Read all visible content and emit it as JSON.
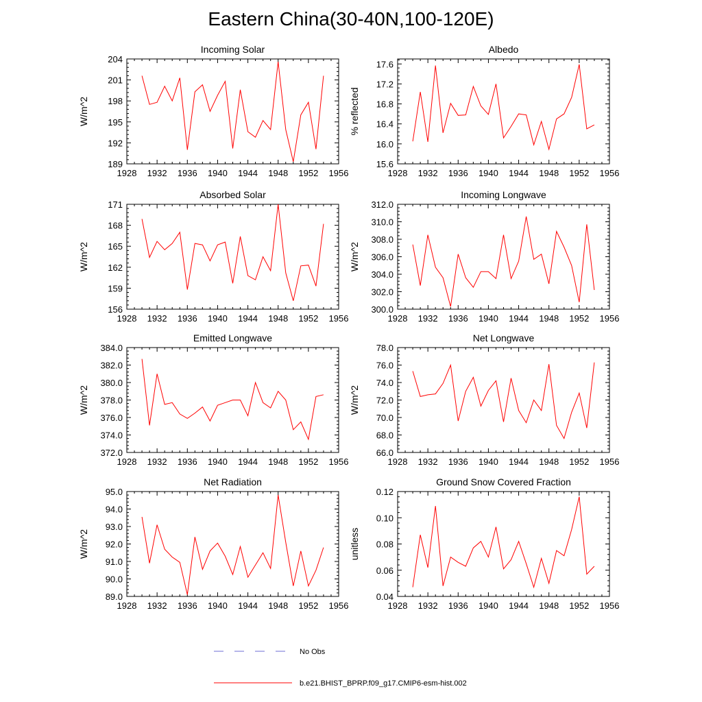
{
  "figure_title": "Eastern China(30-40N,100-120E)",
  "colors": {
    "model_line": "#ff0000",
    "obs_line": "#6b6bd6",
    "axis": "#000000"
  },
  "legend": {
    "obs_label": "No Obs",
    "model_label": "b.e21.BHIST_BPRP.f09_g17.CMIP6-esm-hist.002"
  },
  "chart_data": [
    {
      "type": "line",
      "title": "Incoming Solar",
      "ylabel": "W/m^2",
      "xlim": [
        1928,
        1956
      ],
      "xticks": [
        1928,
        1932,
        1936,
        1940,
        1944,
        1948,
        1952,
        1956
      ],
      "ylim": [
        189,
        204
      ],
      "yticks": [
        "189",
        "192",
        "195",
        "198",
        "201",
        "204"
      ],
      "yticks_values": [
        189,
        192,
        195,
        198,
        201,
        204
      ],
      "x": [
        1930,
        1931,
        1932,
        1933,
        1934,
        1935,
        1936,
        1937,
        1938,
        1939,
        1940,
        1941,
        1942,
        1943,
        1944,
        1945,
        1946,
        1947,
        1948,
        1949,
        1950,
        1951,
        1952,
        1953,
        1954
      ],
      "values": [
        201.6,
        197.5,
        197.8,
        200.1,
        198.0,
        201.3,
        191.0,
        199.3,
        200.3,
        196.5,
        198.8,
        200.8,
        191.2,
        199.6,
        193.6,
        192.8,
        195.2,
        193.9,
        203.6,
        193.9,
        189.3,
        196.0,
        197.8,
        191.1,
        201.6
      ]
    },
    {
      "type": "line",
      "title": "Albedo",
      "ylabel": "% reflected",
      "xlim": [
        1928,
        1956
      ],
      "xticks": [
        1928,
        1932,
        1936,
        1940,
        1944,
        1948,
        1952,
        1956
      ],
      "ylim": [
        15.6,
        17.7
      ],
      "yticks": [
        "15.6",
        "16.0",
        "16.4",
        "16.8",
        "17.2",
        "17.6"
      ],
      "yticks_values": [
        15.6,
        16.0,
        16.4,
        16.8,
        17.2,
        17.6
      ],
      "x": [
        1930,
        1931,
        1932,
        1933,
        1934,
        1935,
        1936,
        1937,
        1938,
        1939,
        1940,
        1941,
        1942,
        1943,
        1944,
        1945,
        1946,
        1947,
        1948,
        1949,
        1950,
        1951,
        1952,
        1953,
        1954
      ],
      "values": [
        16.05,
        17.04,
        16.04,
        17.57,
        16.22,
        16.81,
        16.57,
        16.58,
        17.15,
        16.76,
        16.59,
        17.2,
        16.12,
        16.35,
        16.6,
        16.58,
        15.98,
        16.45,
        15.89,
        16.5,
        16.6,
        16.93,
        17.59,
        16.3,
        16.38
      ]
    },
    {
      "type": "line",
      "title": "Absorbed Solar",
      "ylabel": "W/m^2",
      "xlim": [
        1928,
        1956
      ],
      "xticks": [
        1928,
        1932,
        1936,
        1940,
        1944,
        1948,
        1952,
        1956
      ],
      "ylim": [
        156,
        171
      ],
      "yticks": [
        "156",
        "159",
        "162",
        "165",
        "168",
        "171"
      ],
      "yticks_values": [
        156,
        159,
        162,
        165,
        168,
        171
      ],
      "x": [
        1930,
        1931,
        1932,
        1933,
        1934,
        1935,
        1936,
        1937,
        1938,
        1939,
        1940,
        1941,
        1942,
        1943,
        1944,
        1945,
        1946,
        1947,
        1948,
        1949,
        1950,
        1951,
        1952,
        1953,
        1954
      ],
      "values": [
        168.9,
        163.4,
        165.7,
        164.5,
        165.4,
        167.0,
        158.8,
        165.4,
        165.2,
        162.9,
        165.2,
        165.6,
        159.7,
        166.4,
        160.8,
        160.2,
        163.5,
        161.5,
        171.0,
        161.2,
        157.2,
        162.2,
        162.3,
        159.3,
        168.2
      ]
    },
    {
      "type": "line",
      "title": "Incoming Longwave",
      "ylabel": "W/m^2",
      "xlim": [
        1928,
        1956
      ],
      "xticks": [
        1928,
        1932,
        1936,
        1940,
        1944,
        1948,
        1952,
        1956
      ],
      "ylim": [
        300,
        312
      ],
      "yticks": [
        "300.0",
        "302.0",
        "304.0",
        "306.0",
        "308.0",
        "310.0",
        "312.0"
      ],
      "yticks_values": [
        300,
        302,
        304,
        306,
        308,
        310,
        312
      ],
      "x": [
        1930,
        1931,
        1932,
        1933,
        1934,
        1935,
        1936,
        1937,
        1938,
        1939,
        1940,
        1941,
        1942,
        1943,
        1944,
        1945,
        1946,
        1947,
        1948,
        1949,
        1950,
        1951,
        1952,
        1953,
        1954
      ],
      "values": [
        307.4,
        302.7,
        308.5,
        304.8,
        303.6,
        300.3,
        306.3,
        303.6,
        302.5,
        304.3,
        304.3,
        303.5,
        308.5,
        303.5,
        305.5,
        310.6,
        305.7,
        306.3,
        302.9,
        308.9,
        307.1,
        305.0,
        300.8,
        309.7,
        302.2
      ]
    },
    {
      "type": "line",
      "title": "Emitted Longwave",
      "ylabel": "W/m^2",
      "xlim": [
        1928,
        1956
      ],
      "xticks": [
        1928,
        1932,
        1936,
        1940,
        1944,
        1948,
        1952,
        1956
      ],
      "ylim": [
        372,
        384
      ],
      "yticks": [
        "372.0",
        "374.0",
        "376.0",
        "378.0",
        "380.0",
        "382.0",
        "384.0"
      ],
      "yticks_values": [
        372,
        374,
        376,
        378,
        380,
        382,
        384
      ],
      "x": [
        1930,
        1931,
        1932,
        1933,
        1934,
        1935,
        1936,
        1937,
        1938,
        1939,
        1940,
        1941,
        1942,
        1943,
        1944,
        1945,
        1946,
        1947,
        1948,
        1949,
        1950,
        1951,
        1952,
        1953,
        1954
      ],
      "values": [
        382.7,
        375.1,
        381.0,
        377.5,
        377.7,
        376.4,
        375.9,
        376.5,
        377.2,
        375.6,
        377.4,
        377.7,
        378.0,
        378.0,
        376.2,
        380.0,
        377.7,
        377.1,
        379.0,
        378.0,
        374.6,
        375.5,
        373.5,
        378.4,
        378.6
      ]
    },
    {
      "type": "line",
      "title": "Net Longwave",
      "ylabel": "W/m^2",
      "xlim": [
        1928,
        1956
      ],
      "xticks": [
        1928,
        1932,
        1936,
        1940,
        1944,
        1948,
        1952,
        1956
      ],
      "ylim": [
        66,
        78
      ],
      "yticks": [
        "66.0",
        "68.0",
        "70.0",
        "72.0",
        "74.0",
        "76.0",
        "78.0"
      ],
      "yticks_values": [
        66,
        68,
        70,
        72,
        74,
        76,
        78
      ],
      "x": [
        1930,
        1931,
        1932,
        1933,
        1934,
        1935,
        1936,
        1937,
        1938,
        1939,
        1940,
        1941,
        1942,
        1943,
        1944,
        1945,
        1946,
        1947,
        1948,
        1949,
        1950,
        1951,
        1952,
        1953,
        1954
      ],
      "values": [
        75.3,
        72.4,
        72.6,
        72.7,
        73.9,
        76.0,
        69.6,
        73.0,
        74.6,
        71.3,
        73.1,
        74.2,
        69.5,
        74.5,
        70.8,
        69.4,
        72.0,
        70.8,
        76.1,
        69.1,
        67.6,
        70.6,
        72.8,
        68.8,
        76.3
      ]
    },
    {
      "type": "line",
      "title": "Net Radiation",
      "ylabel": "W/m^2",
      "xlim": [
        1928,
        1956
      ],
      "xticks": [
        1928,
        1932,
        1936,
        1940,
        1944,
        1948,
        1952,
        1956
      ],
      "ylim": [
        89,
        95
      ],
      "yticks": [
        "89.0",
        "90.0",
        "91.0",
        "92.0",
        "93.0",
        "94.0",
        "95.0"
      ],
      "yticks_values": [
        89,
        90,
        91,
        92,
        93,
        94,
        95
      ],
      "x": [
        1930,
        1931,
        1932,
        1933,
        1934,
        1935,
        1936,
        1937,
        1938,
        1939,
        1940,
        1941,
        1942,
        1943,
        1944,
        1945,
        1946,
        1947,
        1948,
        1949,
        1950,
        1951,
        1952,
        1953,
        1954
      ],
      "values": [
        93.55,
        90.9,
        93.1,
        91.7,
        91.25,
        90.95,
        89.1,
        92.4,
        90.55,
        91.6,
        92.05,
        91.3,
        90.25,
        91.85,
        90.1,
        90.8,
        91.5,
        90.6,
        94.8,
        92.1,
        89.6,
        91.6,
        89.6,
        90.5,
        91.8
      ]
    },
    {
      "type": "line",
      "title": "Ground Snow Covered Fraction",
      "ylabel": "unitless",
      "xlim": [
        1928,
        1956
      ],
      "xticks": [
        1928,
        1932,
        1936,
        1940,
        1944,
        1948,
        1952,
        1956
      ],
      "ylim": [
        0.04,
        0.12
      ],
      "yticks": [
        "0.04",
        "0.06",
        "0.08",
        "0.10",
        "0.12"
      ],
      "yticks_values": [
        0.04,
        0.06,
        0.08,
        0.1,
        0.12
      ],
      "x": [
        1930,
        1931,
        1932,
        1933,
        1934,
        1935,
        1936,
        1937,
        1938,
        1939,
        1940,
        1941,
        1942,
        1943,
        1944,
        1945,
        1946,
        1947,
        1948,
        1949,
        1950,
        1951,
        1952,
        1953,
        1954
      ],
      "values": [
        0.047,
        0.087,
        0.062,
        0.109,
        0.048,
        0.07,
        0.066,
        0.063,
        0.077,
        0.082,
        0.07,
        0.093,
        0.061,
        0.068,
        0.082,
        0.065,
        0.047,
        0.069,
        0.05,
        0.075,
        0.071,
        0.091,
        0.116,
        0.057,
        0.063
      ]
    }
  ]
}
